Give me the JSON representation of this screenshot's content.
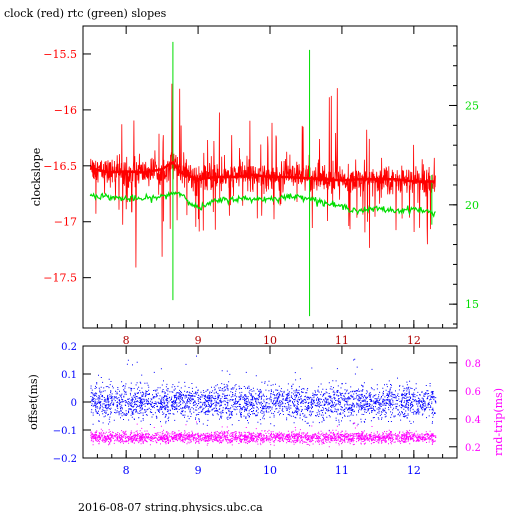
{
  "title": "clock (red) rtc (green) slopes",
  "footer": "2016-08-07 string.physics.ubc.ca",
  "colors": {
    "clock": "#ff0000",
    "rtc": "#00dd00",
    "offset": "#0000ff",
    "roundtrip": "#ff00ff",
    "axis": "#000000"
  },
  "chart_data": [
    {
      "type": "line",
      "title": "clock (red) rtc (green) slopes",
      "xlim": [
        7.4,
        12.6
      ],
      "x_ticks": [
        8,
        9,
        10,
        11,
        12
      ],
      "ylabel": "clockslope",
      "ylim": [
        -17.95,
        -15.25
      ],
      "y_ticks": [
        -15.5,
        -16,
        -16.5,
        -17,
        -17.5
      ],
      "y2lim": [
        13.8,
        29.0
      ],
      "y2_ticks": [
        15,
        20,
        25
      ],
      "grid": false,
      "series": [
        {
          "name": "clock",
          "axis": "left",
          "x": [
            7.5,
            7.75,
            8.0,
            8.25,
            8.5,
            8.65,
            8.75,
            9.0,
            9.25,
            9.5,
            9.75,
            10.0,
            10.25,
            10.5,
            10.75,
            11.0,
            11.25,
            11.5,
            11.75,
            12.0,
            12.25,
            12.3
          ],
          "values": [
            -16.52,
            -16.56,
            -16.55,
            -16.56,
            -16.53,
            -16.47,
            -16.56,
            -16.62,
            -16.6,
            -16.6,
            -16.58,
            -16.6,
            -16.6,
            -16.61,
            -16.62,
            -16.63,
            -16.62,
            -16.62,
            -16.62,
            -16.64,
            -16.64,
            -16.64
          ]
        },
        {
          "name": "rtc",
          "axis": "right",
          "x": [
            7.5,
            7.75,
            8.0,
            8.25,
            8.5,
            8.65,
            8.75,
            9.0,
            9.25,
            9.5,
            9.75,
            10.0,
            10.25,
            10.5,
            10.75,
            11.0,
            11.25,
            11.5,
            11.75,
            12.0,
            12.25,
            12.3
          ],
          "values": [
            20.5,
            20.4,
            20.3,
            20.3,
            20.4,
            20.6,
            20.6,
            19.8,
            20.2,
            20.3,
            20.3,
            20.3,
            20.4,
            20.4,
            20.1,
            19.9,
            19.7,
            19.8,
            19.7,
            19.8,
            19.6,
            19.6
          ]
        }
      ]
    },
    {
      "type": "scatter",
      "xlim": [
        7.4,
        12.6
      ],
      "x_ticks": [
        8,
        9,
        10,
        11,
        12
      ],
      "ylabel": "offset(ms)",
      "ylim": [
        -0.2,
        0.2
      ],
      "y_ticks": [
        0.2,
        0.1,
        0,
        -0.1,
        -0.2
      ],
      "y2label": "rnd-trip(ms)",
      "y2lim": [
        0.12,
        0.92
      ],
      "y2_ticks": [
        0.2,
        0.4,
        0.6,
        0.8
      ],
      "grid": false,
      "series": [
        {
          "name": "offset",
          "axis": "left",
          "x_range": [
            7.5,
            12.3
          ],
          "center": 0.0,
          "spread": 0.03
        },
        {
          "name": "rnd-trip",
          "axis": "right",
          "x_range": [
            7.5,
            12.3
          ],
          "center": 0.27,
          "spread": 0.02
        }
      ]
    }
  ]
}
